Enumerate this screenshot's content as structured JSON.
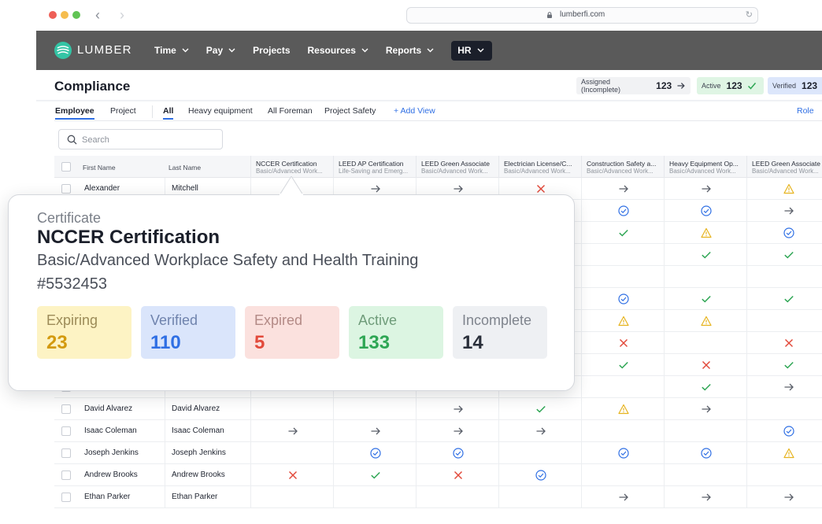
{
  "browser": {
    "url": "lumberfi.com"
  },
  "app": {
    "brand": "LUMBER",
    "nav": [
      {
        "label": "Time",
        "has_menu": true
      },
      {
        "label": "Pay",
        "has_menu": true
      },
      {
        "label": "Projects",
        "has_menu": false
      },
      {
        "label": "Resources",
        "has_menu": true
      },
      {
        "label": "Reports",
        "has_menu": true
      },
      {
        "label": "HR",
        "has_menu": true,
        "active": true
      }
    ],
    "header_color": "#5a5a5a"
  },
  "page": {
    "title": "Compliance",
    "summary": {
      "assigned_label": "Assigned (Incomplete)",
      "assigned_count": "123",
      "active_label": "Active",
      "active_count": "123",
      "verified_label": "Verified",
      "verified_count": "123"
    },
    "view_tabs": [
      "Employee",
      "Project"
    ],
    "filter_tabs": [
      "All",
      "Heavy equipment",
      "All Foreman",
      "Project Safety"
    ],
    "add_view": "Add View",
    "role": "Role",
    "search_placeholder": "Search"
  },
  "table": {
    "name_headers": [
      "First Name",
      "Last Name"
    ],
    "cert_headers": [
      {
        "title": "NCCER Certification",
        "sub": "Basic/Advanced Work..."
      },
      {
        "title": "LEED AP Certification",
        "sub": "Life-Saving and Emerg..."
      },
      {
        "title": "LEED Green Associate",
        "sub": "Basic/Advanced Work..."
      },
      {
        "title": "Electrician License/C...",
        "sub": "Basic/Advanced Work..."
      },
      {
        "title": "Construction Safety a...",
        "sub": "Basic/Advanced Work..."
      },
      {
        "title": "Heavy Equipment Op...",
        "sub": "Basic/Advanced Work..."
      },
      {
        "title": "LEED Green Associate",
        "sub": "Basic/Advanced Work..."
      }
    ],
    "rows": [
      {
        "first": "Alexander",
        "last": "Mitchell",
        "status": [
          "",
          "arrow",
          "arrow",
          "x",
          "arrow",
          "arrow",
          "warn"
        ]
      },
      {
        "first": "",
        "last": "",
        "status": [
          "",
          "",
          "",
          "",
          "verified",
          "verified",
          "arrow"
        ]
      },
      {
        "first": "",
        "last": "",
        "status": [
          "",
          "",
          "",
          "",
          "check",
          "warn",
          "verified"
        ]
      },
      {
        "first": "",
        "last": "",
        "status": [
          "",
          "",
          "",
          "",
          "",
          "check",
          "check"
        ]
      },
      {
        "first": "",
        "last": "",
        "status": [
          "",
          "",
          "",
          "",
          "",
          "",
          ""
        ]
      },
      {
        "first": "",
        "last": "",
        "status": [
          "",
          "",
          "",
          "",
          "verified",
          "check",
          "check"
        ]
      },
      {
        "first": "",
        "last": "",
        "status": [
          "",
          "",
          "",
          "",
          "warn",
          "warn",
          ""
        ]
      },
      {
        "first": "",
        "last": "",
        "status": [
          "",
          "",
          "",
          "",
          "x",
          "",
          "x"
        ]
      },
      {
        "first": "",
        "last": "",
        "status": [
          "",
          "",
          "",
          "",
          "check",
          "x",
          "check"
        ]
      },
      {
        "first": "",
        "last": "",
        "status": [
          "",
          "",
          "",
          "",
          "",
          "check",
          "arrow"
        ]
      },
      {
        "first": "David Alvarez",
        "last": "David Alvarez",
        "status": [
          "",
          "",
          "arrow",
          "check",
          "warn",
          "arrow",
          ""
        ]
      },
      {
        "first": "Isaac Coleman",
        "last": "Isaac Coleman",
        "status": [
          "arrow",
          "arrow",
          "arrow",
          "arrow",
          "",
          "",
          "verified"
        ]
      },
      {
        "first": "Joseph Jenkins",
        "last": "Joseph Jenkins",
        "status": [
          "",
          "verified",
          "verified",
          "",
          "verified",
          "verified",
          "warn"
        ]
      },
      {
        "first": "Andrew Brooks",
        "last": "Andrew Brooks",
        "status": [
          "x",
          "check",
          "x",
          "verified",
          "",
          "",
          ""
        ]
      },
      {
        "first": "Ethan Parker",
        "last": "Ethan Parker",
        "status": [
          "",
          "",
          "",
          "",
          "arrow",
          "arrow",
          "arrow"
        ]
      }
    ]
  },
  "popover": {
    "label": "Certificate",
    "title": "NCCER Certification",
    "subtitle": "Basic/Advanced Workplace Safety and Health Training",
    "id": "#5532453",
    "stats": [
      {
        "key": "expiring",
        "label": "Expiring",
        "value": "23"
      },
      {
        "key": "verified",
        "label": "Verified",
        "value": "110"
      },
      {
        "key": "expired",
        "label": "Expired",
        "value": "5"
      },
      {
        "key": "active",
        "label": "Active",
        "value": "133"
      },
      {
        "key": "incomplete",
        "label": "Incomplete",
        "value": "14"
      }
    ]
  },
  "colors": {
    "accent": "#2f6fe4",
    "check": "#2ea654",
    "x": "#e24a3b",
    "warn": "#e6b31e",
    "arrow": "#5a5f69"
  }
}
